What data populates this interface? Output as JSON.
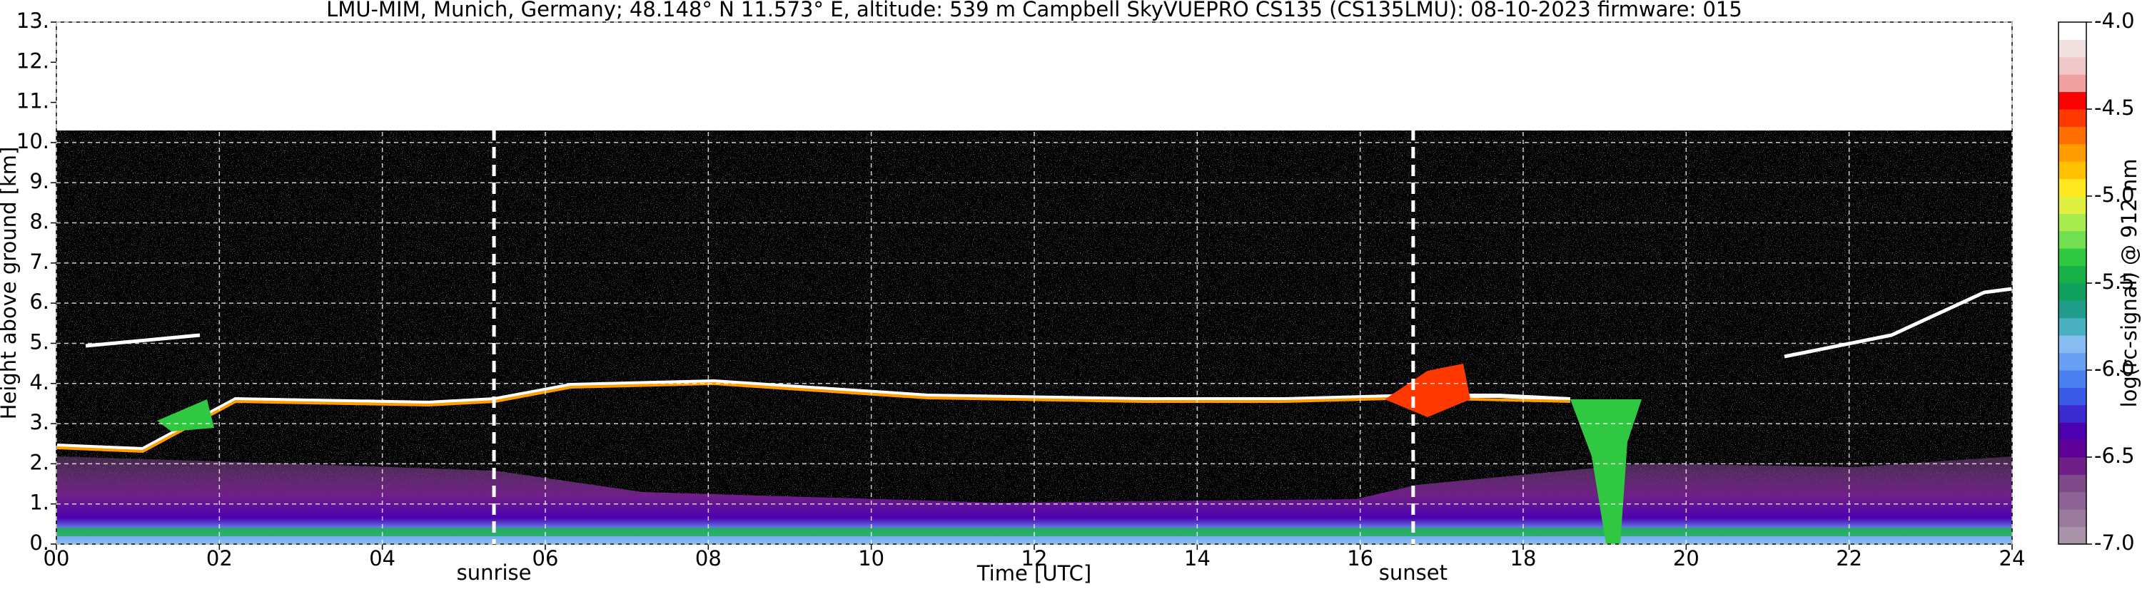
{
  "chart_data": {
    "type": "ceilometer",
    "title": "LMU-MIM, Munich, Germany; 48.148° N 11.573° E, altitude: 539 m    Campbell SkyVUEPRO CS135 (CS135LMU): 08-10-2023    firmware: 015",
    "xlabel": "Time [UTC]",
    "ylabel": "Height above ground [km]",
    "xlim": [
      0,
      24
    ],
    "xticks": [
      {
        "value": 0,
        "label": "00"
      },
      {
        "value": 2,
        "label": "02"
      },
      {
        "value": 4,
        "label": "04"
      },
      {
        "value": 6,
        "label": "06"
      },
      {
        "value": 8,
        "label": "08"
      },
      10,
      12,
      14,
      16,
      18,
      20,
      22,
      24
    ],
    "ylim": [
      0,
      13
    ],
    "yticks": [
      {
        "value": 0,
        "label": "0."
      },
      {
        "value": 1,
        "label": "1."
      },
      {
        "value": 2,
        "label": "2."
      },
      {
        "value": 3,
        "label": "3."
      },
      {
        "value": 4,
        "label": "4."
      },
      {
        "value": 5,
        "label": "5."
      },
      {
        "value": 6,
        "label": "6."
      },
      {
        "value": 7,
        "label": "7."
      },
      {
        "value": 8,
        "label": "8."
      },
      {
        "value": 9,
        "label": "9."
      },
      {
        "value": 10,
        "label": "10."
      },
      {
        "value": 11,
        "label": "11."
      },
      {
        "value": 12,
        "label": "12."
      },
      {
        "value": 13,
        "label": "13."
      }
    ],
    "grid": true,
    "annotations": [
      {
        "x": 5.37,
        "text": "sunrise"
      },
      {
        "x": 16.65,
        "text": "sunset"
      }
    ],
    "colorbar": {
      "label": "log(rc-signal) @ 912 nm",
      "lim": [
        -7,
        -4
      ],
      "ticks": [
        {
          "value": -7,
          "label": "-7.0"
        },
        -6.5,
        {
          "value": -6,
          "label": "-6.0"
        },
        -5.5,
        {
          "value": -5,
          "label": "-5.0"
        },
        -4.5,
        {
          "value": -4,
          "label": "-4.0"
        }
      ],
      "colors": [
        "#a894a8",
        "#9a7b9e",
        "#8c6394",
        "#7e4a8a",
        "#701f88",
        "#5e0096",
        "#4c00b0",
        "#3a2ad0",
        "#3a5ae8",
        "#4a80f0",
        "#6aa0f4",
        "#88bcf0",
        "#4ab0c0",
        "#1e9e8a",
        "#10a060",
        "#16b046",
        "#30c840",
        "#70e050",
        "#a8ec50",
        "#e0f040",
        "#ffe820",
        "#ffc000",
        "#ff9c00",
        "#ff7000",
        "#ff3800",
        "#ff0000",
        "#f0a0a0",
        "#f0c8c8",
        "#f0e0e0",
        "#ffffff"
      ]
    }
  }
}
